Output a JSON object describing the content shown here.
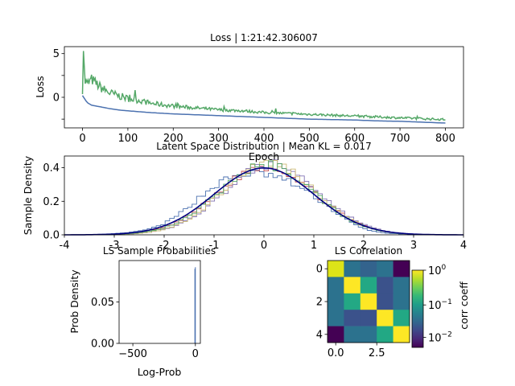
{
  "colors": {
    "train_loss": "#55a868",
    "val_loss": "#4c72b0",
    "normal_curve": "#000080",
    "hist_series": [
      "#4c72b0",
      "#c44e52",
      "#8172b3",
      "#ccb974",
      "#55a868"
    ]
  },
  "chart_data": [
    {
      "id": "loss",
      "type": "line",
      "title": "Loss | 1:21:42.306007",
      "xlabel": "Epoch",
      "ylabel": "Loss",
      "xlim": [
        -40,
        840
      ],
      "ylim": [
        -3.5,
        5.8
      ],
      "xticks": [
        0,
        100,
        200,
        300,
        400,
        500,
        600,
        700,
        800
      ],
      "yticks": [
        -2.5,
        0,
        2.5,
        5
      ],
      "ytick_labels": [
        "",
        "0",
        "",
        "5"
      ],
      "series": [
        {
          "key": "train",
          "x": [
            0,
            2,
            5,
            10,
            20,
            40,
            60,
            80,
            100,
            125,
            150,
            200,
            250,
            300,
            350,
            400,
            450,
            500,
            550,
            600,
            650,
            700,
            750,
            800
          ],
          "y": [
            0.8,
            5.3,
            1.6,
            1.2,
            1.8,
            0.9,
            0.3,
            0.0,
            -0.3,
            -0.5,
            -0.8,
            -1.1,
            -1.3,
            -1.5,
            -1.6,
            -1.8,
            -1.9,
            -2.0,
            -2.1,
            -2.2,
            -2.3,
            -2.4,
            -2.5,
            -2.6
          ]
        },
        {
          "key": "val",
          "x": [
            0,
            5,
            10,
            20,
            40,
            60,
            80,
            100,
            150,
            200,
            250,
            300,
            350,
            400,
            450,
            500,
            550,
            600,
            650,
            700,
            750,
            800
          ],
          "y": [
            0.2,
            -0.2,
            -0.6,
            -0.9,
            -1.1,
            -1.3,
            -1.45,
            -1.55,
            -1.75,
            -1.9,
            -2.0,
            -2.1,
            -2.2,
            -2.3,
            -2.4,
            -2.5,
            -2.55,
            -2.6,
            -2.7,
            -2.75,
            -2.85,
            -2.95
          ]
        }
      ]
    },
    {
      "id": "latent",
      "type": "line",
      "title": "Latent Space Distribution | Mean KL = 0.017",
      "xlabel": "",
      "ylabel": "Sample Density",
      "xlim": [
        -4,
        4
      ],
      "ylim": [
        0,
        0.47
      ],
      "xticks": [
        -4,
        -3,
        -2,
        -1,
        0,
        1,
        2,
        3,
        4
      ],
      "yticks": [
        0,
        0.2,
        0.4
      ],
      "ytick_labels": [
        "0.0",
        "0.2",
        "0.4"
      ],
      "normal": {
        "mean": 0,
        "std": 1
      },
      "hist_params": [
        {
          "mean": -0.2,
          "std": 1.05,
          "flat": 0.35
        },
        {
          "mean": 0.05,
          "std": 0.98,
          "flat": 0
        },
        {
          "mean": 0.15,
          "std": 0.95,
          "flat": 0
        },
        {
          "mean": 0.1,
          "std": 0.93,
          "flat": 0
        },
        {
          "mean": 0.05,
          "std": 0.96,
          "flat": 0
        }
      ]
    },
    {
      "id": "probs",
      "type": "bar",
      "title": "LS Sample Probabilities",
      "xlabel": "Log-Prob",
      "ylabel": "Prob Density",
      "xlim": [
        -610,
        40
      ],
      "ylim": [
        0,
        0.1
      ],
      "xticks": [
        -500,
        0
      ],
      "xtick_labels": [
        "−500",
        "0"
      ],
      "yticks": [
        0,
        0.05
      ],
      "ytick_labels": [
        "0.00",
        "0.05"
      ],
      "spike_x": [
        -4,
        0
      ],
      "spike_y": [
        0.09,
        0.092
      ]
    },
    {
      "id": "corr",
      "type": "heatmap",
      "title": "LS Correlation",
      "xticks": [
        0,
        2.5
      ],
      "xtick_labels": [
        "0.0",
        "2.5"
      ],
      "yticks": [
        0,
        2,
        4
      ],
      "ytick_labels": [
        "0",
        "2",
        "4"
      ],
      "matrix": [
        [
          "#dde318",
          "#2c728e",
          "#33638d",
          "#2c728e",
          "#440154"
        ],
        [
          "#2c728e",
          "#fde725",
          "#23a884",
          "#3b528b",
          "#2c728e"
        ],
        [
          "#2c728e",
          "#23a884",
          "#fde725",
          "#3b528b",
          "#2c728e"
        ],
        [
          "#2c728e",
          "#3b528b",
          "#3b528b",
          "#fde725",
          "#22a884"
        ],
        [
          "#440154",
          "#2c728e",
          "#2c728e",
          "#22a884",
          "#fde725"
        ]
      ],
      "colorbar": {
        "label": "corr coeff",
        "ticks": [
          {
            "base": "10",
            "exp": "0",
            "pos": 1.0
          },
          {
            "base": "10",
            "exp": "−1",
            "pos": 0.55
          },
          {
            "base": "10",
            "exp": "−2",
            "pos": 0.13
          }
        ]
      }
    }
  ]
}
